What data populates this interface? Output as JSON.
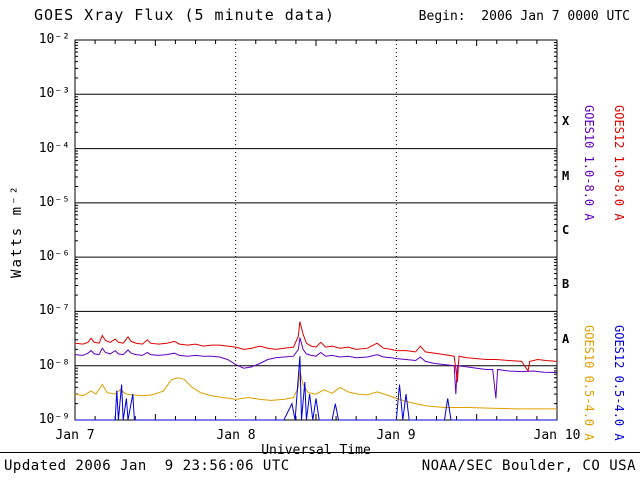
{
  "header": {
    "title": "GOES Xray Flux (5 minute data)",
    "begin_label": "Begin:  2006 Jan 7 0000 UTC"
  },
  "axes": {
    "y_label": "Watts m⁻²",
    "y_ticks": [
      "10⁻²",
      "10⁻³",
      "10⁻⁴",
      "10⁻⁵",
      "10⁻⁶",
      "10⁻⁷",
      "10⁻⁸",
      "10⁻⁹"
    ],
    "x_ticks": [
      "Jan 7",
      "Jan 8",
      "Jan 9",
      "Jan 10"
    ],
    "x_label": "Universal Time",
    "flare_classes": [
      "X",
      "M",
      "C",
      "B",
      "A"
    ]
  },
  "legend": {
    "goes10_long": {
      "label": "GOES10 1.0-8.0 A",
      "color": "#6000c0"
    },
    "goes12_long": {
      "label": "GOES12 1.0-8.0 A",
      "color": "#e00000"
    },
    "goes10_short": {
      "label": "GOES10 0.5-4.0 A",
      "color": "#e0a000"
    },
    "goes12_short": {
      "label": "GOES12 0.5-4.0 A",
      "color": "#0000d8"
    }
  },
  "footer": {
    "updated": "Updated 2006 Jan  9 23:56:06 UTC",
    "credit": "NOAA/SEC Boulder, CO USA"
  },
  "chart_data": {
    "type": "line",
    "title": "GOES Xray Flux (5 minute data)",
    "xlabel": "Universal Time",
    "ylabel": "Watts m⁻²",
    "x_unit": "days since 2006 Jan 7 0000 UTC",
    "x_range": [
      0,
      3
    ],
    "x_tick_days": [
      0,
      1,
      2,
      3
    ],
    "x_tick_labels": [
      "Jan 7",
      "Jan 8",
      "Jan 9",
      "Jan 10"
    ],
    "y_scale": "log",
    "y_range": [
      1e-09,
      0.01
    ],
    "y_gridline_exponents": [
      -3,
      -4,
      -5,
      -6,
      -7,
      -8
    ],
    "x_gridline_days": [
      1,
      2
    ],
    "flare_class_bands": [
      {
        "label": "X",
        "between": [
          0.0001,
          0.001
        ]
      },
      {
        "label": "M",
        "between": [
          1e-05,
          0.0001
        ]
      },
      {
        "label": "C",
        "between": [
          1e-06,
          1e-05
        ]
      },
      {
        "label": "B",
        "between": [
          1e-07,
          1e-06
        ]
      },
      {
        "label": "A",
        "between": [
          1e-08,
          1e-07
        ]
      }
    ],
    "legend_position": "right-rotated",
    "grid": true,
    "series": [
      {
        "id": "goes10_short",
        "name": "GOES10 0.5-4.0 A",
        "color": "#e0a000",
        "points": [
          [
            0.0,
            3e-09
          ],
          [
            0.05,
            2.8e-09
          ],
          [
            0.1,
            3.4e-09
          ],
          [
            0.13,
            3e-09
          ],
          [
            0.17,
            4.5e-09
          ],
          [
            0.2,
            3.2e-09
          ],
          [
            0.25,
            3e-09
          ],
          [
            0.28,
            3.6e-09
          ],
          [
            0.32,
            3e-09
          ],
          [
            0.36,
            2.9e-09
          ],
          [
            0.42,
            2.8e-09
          ],
          [
            0.48,
            2.9e-09
          ],
          [
            0.55,
            3.4e-09
          ],
          [
            0.6,
            5.5e-09
          ],
          [
            0.64,
            6e-09
          ],
          [
            0.68,
            5.6e-09
          ],
          [
            0.72,
            4.2e-09
          ],
          [
            0.78,
            3.2e-09
          ],
          [
            0.85,
            2.8e-09
          ],
          [
            0.92,
            2.6e-09
          ],
          [
            1.0,
            2.4e-09
          ],
          [
            1.08,
            2.6e-09
          ],
          [
            1.15,
            2.4e-09
          ],
          [
            1.22,
            2.3e-09
          ],
          [
            1.3,
            2.4e-09
          ],
          [
            1.36,
            2.6e-09
          ],
          [
            1.39,
            4e-09
          ],
          [
            1.4,
            8e-09
          ],
          [
            1.42,
            4.5e-09
          ],
          [
            1.45,
            3.2e-09
          ],
          [
            1.5,
            3e-09
          ],
          [
            1.55,
            3.6e-09
          ],
          [
            1.6,
            3.1e-09
          ],
          [
            1.65,
            4e-09
          ],
          [
            1.7,
            3.3e-09
          ],
          [
            1.76,
            3e-09
          ],
          [
            1.82,
            2.9e-09
          ],
          [
            1.88,
            3.3e-09
          ],
          [
            1.94,
            2.9e-09
          ],
          [
            2.0,
            2.5e-09
          ],
          [
            2.06,
            2.2e-09
          ],
          [
            2.12,
            2e-09
          ],
          [
            2.2,
            1.8e-09
          ],
          [
            2.3,
            1.7e-09
          ],
          [
            2.45,
            1.7e-09
          ],
          [
            2.6,
            1.65e-09
          ],
          [
            2.75,
            1.6e-09
          ],
          [
            2.9,
            1.6e-09
          ],
          [
            3.0,
            1.6e-09
          ]
        ]
      },
      {
        "id": "goes10_long",
        "name": "GOES10 1.0-8.0 A",
        "color": "#6000c0",
        "points": [
          [
            0.0,
            1.6e-08
          ],
          [
            0.05,
            1.55e-08
          ],
          [
            0.08,
            1.7e-08
          ],
          [
            0.1,
            1.9e-08
          ],
          [
            0.12,
            1.65e-08
          ],
          [
            0.15,
            1.6e-08
          ],
          [
            0.17,
            2.1e-08
          ],
          [
            0.19,
            1.75e-08
          ],
          [
            0.22,
            1.65e-08
          ],
          [
            0.25,
            1.9e-08
          ],
          [
            0.27,
            1.65e-08
          ],
          [
            0.3,
            1.6e-08
          ],
          [
            0.33,
            1.95e-08
          ],
          [
            0.35,
            1.7e-08
          ],
          [
            0.38,
            1.6e-08
          ],
          [
            0.42,
            1.55e-08
          ],
          [
            0.45,
            1.75e-08
          ],
          [
            0.47,
            1.6e-08
          ],
          [
            0.52,
            1.55e-08
          ],
          [
            0.57,
            1.6e-08
          ],
          [
            0.62,
            1.7e-08
          ],
          [
            0.65,
            1.55e-08
          ],
          [
            0.7,
            1.5e-08
          ],
          [
            0.75,
            1.55e-08
          ],
          [
            0.8,
            1.5e-08
          ],
          [
            0.85,
            1.5e-08
          ],
          [
            0.9,
            1.45e-08
          ],
          [
            0.95,
            1.3e-08
          ],
          [
            1.0,
            1.05e-08
          ],
          [
            1.05,
            9e-09
          ],
          [
            1.1,
            9.5e-09
          ],
          [
            1.15,
            1.1e-08
          ],
          [
            1.2,
            1.3e-08
          ],
          [
            1.25,
            1.4e-08
          ],
          [
            1.3,
            1.45e-08
          ],
          [
            1.36,
            1.5e-08
          ],
          [
            1.39,
            2e-08
          ],
          [
            1.4,
            3.3e-08
          ],
          [
            1.42,
            2e-08
          ],
          [
            1.44,
            1.65e-08
          ],
          [
            1.47,
            1.55e-08
          ],
          [
            1.5,
            1.5e-08
          ],
          [
            1.53,
            1.75e-08
          ],
          [
            1.56,
            1.5e-08
          ],
          [
            1.6,
            1.55e-08
          ],
          [
            1.65,
            1.45e-08
          ],
          [
            1.7,
            1.5e-08
          ],
          [
            1.75,
            1.4e-08
          ],
          [
            1.82,
            1.45e-08
          ],
          [
            1.88,
            1.6e-08
          ],
          [
            1.92,
            1.45e-08
          ],
          [
            1.97,
            1.4e-08
          ],
          [
            2.0,
            1.35e-08
          ],
          [
            2.06,
            1.3e-08
          ],
          [
            2.12,
            1.25e-08
          ],
          [
            2.15,
            1.45e-08
          ],
          [
            2.18,
            1.2e-08
          ],
          [
            2.24,
            1.1e-08
          ],
          [
            2.3,
            1.05e-08
          ],
          [
            2.36,
            1e-08
          ],
          [
            2.37,
            3e-09
          ],
          [
            2.38,
            1e-08
          ],
          [
            2.44,
            9.5e-09
          ],
          [
            2.5,
            9e-09
          ],
          [
            2.56,
            8.5e-09
          ],
          [
            2.6,
            8.5e-09
          ],
          [
            2.62,
            2.5e-09
          ],
          [
            2.63,
            8.5e-09
          ],
          [
            2.7,
            8e-09
          ],
          [
            2.78,
            7.8e-09
          ],
          [
            2.85,
            8e-09
          ],
          [
            2.92,
            7.6e-09
          ],
          [
            3.0,
            7.5e-09
          ]
        ]
      },
      {
        "id": "goes12_long",
        "name": "GOES12 1.0-8.0 A",
        "color": "#e00000",
        "points": [
          [
            0.0,
            2.6e-08
          ],
          [
            0.05,
            2.5e-08
          ],
          [
            0.08,
            2.7e-08
          ],
          [
            0.1,
            3.2e-08
          ],
          [
            0.12,
            2.7e-08
          ],
          [
            0.15,
            2.6e-08
          ],
          [
            0.17,
            3.6e-08
          ],
          [
            0.19,
            2.9e-08
          ],
          [
            0.22,
            2.7e-08
          ],
          [
            0.25,
            3.1e-08
          ],
          [
            0.27,
            2.7e-08
          ],
          [
            0.3,
            2.6e-08
          ],
          [
            0.33,
            3.4e-08
          ],
          [
            0.35,
            2.8e-08
          ],
          [
            0.38,
            2.6e-08
          ],
          [
            0.42,
            2.5e-08
          ],
          [
            0.45,
            3e-08
          ],
          [
            0.47,
            2.6e-08
          ],
          [
            0.52,
            2.5e-08
          ],
          [
            0.57,
            2.6e-08
          ],
          [
            0.62,
            2.8e-08
          ],
          [
            0.65,
            2.5e-08
          ],
          [
            0.7,
            2.4e-08
          ],
          [
            0.75,
            2.5e-08
          ],
          [
            0.8,
            2.3e-08
          ],
          [
            0.85,
            2.4e-08
          ],
          [
            0.9,
            2.4e-08
          ],
          [
            0.95,
            2.3e-08
          ],
          [
            1.0,
            2.2e-08
          ],
          [
            1.05,
            2e-08
          ],
          [
            1.1,
            2.1e-08
          ],
          [
            1.15,
            2.3e-08
          ],
          [
            1.2,
            2.1e-08
          ],
          [
            1.25,
            2e-08
          ],
          [
            1.3,
            2.1e-08
          ],
          [
            1.36,
            2.2e-08
          ],
          [
            1.39,
            3.5e-08
          ],
          [
            1.4,
            6.5e-08
          ],
          [
            1.42,
            3.8e-08
          ],
          [
            1.44,
            2.6e-08
          ],
          [
            1.47,
            2.3e-08
          ],
          [
            1.5,
            2.2e-08
          ],
          [
            1.53,
            2.7e-08
          ],
          [
            1.56,
            2.2e-08
          ],
          [
            1.6,
            2.3e-08
          ],
          [
            1.65,
            2.1e-08
          ],
          [
            1.7,
            2.2e-08
          ],
          [
            1.75,
            2e-08
          ],
          [
            1.82,
            2.1e-08
          ],
          [
            1.88,
            2.6e-08
          ],
          [
            1.92,
            2.1e-08
          ],
          [
            1.97,
            2e-08
          ],
          [
            2.0,
            1.9e-08
          ],
          [
            2.06,
            1.9e-08
          ],
          [
            2.12,
            1.8e-08
          ],
          [
            2.15,
            2.3e-08
          ],
          [
            2.18,
            1.8e-08
          ],
          [
            2.24,
            1.7e-08
          ],
          [
            2.3,
            1.6e-08
          ],
          [
            2.36,
            1.5e-08
          ],
          [
            2.38,
            5e-09
          ],
          [
            2.39,
            1.5e-08
          ],
          [
            2.44,
            1.4e-08
          ],
          [
            2.5,
            1.35e-08
          ],
          [
            2.56,
            1.3e-08
          ],
          [
            2.62,
            1.3e-08
          ],
          [
            2.7,
            1.25e-08
          ],
          [
            2.78,
            1.2e-08
          ],
          [
            2.82,
            8e-09
          ],
          [
            2.83,
            1.2e-08
          ],
          [
            2.88,
            1.3e-08
          ],
          [
            2.93,
            1.25e-08
          ],
          [
            3.0,
            1.2e-08
          ]
        ]
      },
      {
        "id": "goes12_short",
        "name": "GOES12 0.5-4.0 A",
        "color": "#0000d8",
        "points": [
          [
            0.0,
            1e-09
          ],
          [
            0.2,
            1e-09
          ],
          [
            0.25,
            1e-09
          ],
          [
            0.26,
            3.5e-09
          ],
          [
            0.27,
            1e-09
          ],
          [
            0.29,
            4.5e-09
          ],
          [
            0.3,
            1e-09
          ],
          [
            0.32,
            2.5e-09
          ],
          [
            0.33,
            1e-09
          ],
          [
            0.36,
            3e-09
          ],
          [
            0.37,
            1e-09
          ],
          [
            0.5,
            1e-09
          ],
          [
            0.8,
            9e-10
          ],
          [
            1.1,
            9e-10
          ],
          [
            1.3,
            1e-09
          ],
          [
            1.35,
            2e-09
          ],
          [
            1.37,
            1e-09
          ],
          [
            1.4,
            1.5e-08
          ],
          [
            1.41,
            1e-09
          ],
          [
            1.43,
            5e-09
          ],
          [
            1.44,
            1e-09
          ],
          [
            1.46,
            3e-09
          ],
          [
            1.48,
            1e-09
          ],
          [
            1.5,
            2.5e-09
          ],
          [
            1.52,
            1e-09
          ],
          [
            1.6,
            1e-09
          ],
          [
            1.62,
            2e-09
          ],
          [
            1.64,
            1e-09
          ],
          [
            1.9,
            9e-10
          ],
          [
            2.0,
            1e-09
          ],
          [
            2.02,
            4.5e-09
          ],
          [
            2.04,
            1e-09
          ],
          [
            2.06,
            3e-09
          ],
          [
            2.08,
            1e-09
          ],
          [
            2.3,
            1e-09
          ],
          [
            2.32,
            2.5e-09
          ],
          [
            2.34,
            1e-09
          ],
          [
            2.6,
            9e-10
          ],
          [
            3.0,
            9e-10
          ]
        ]
      }
    ]
  }
}
